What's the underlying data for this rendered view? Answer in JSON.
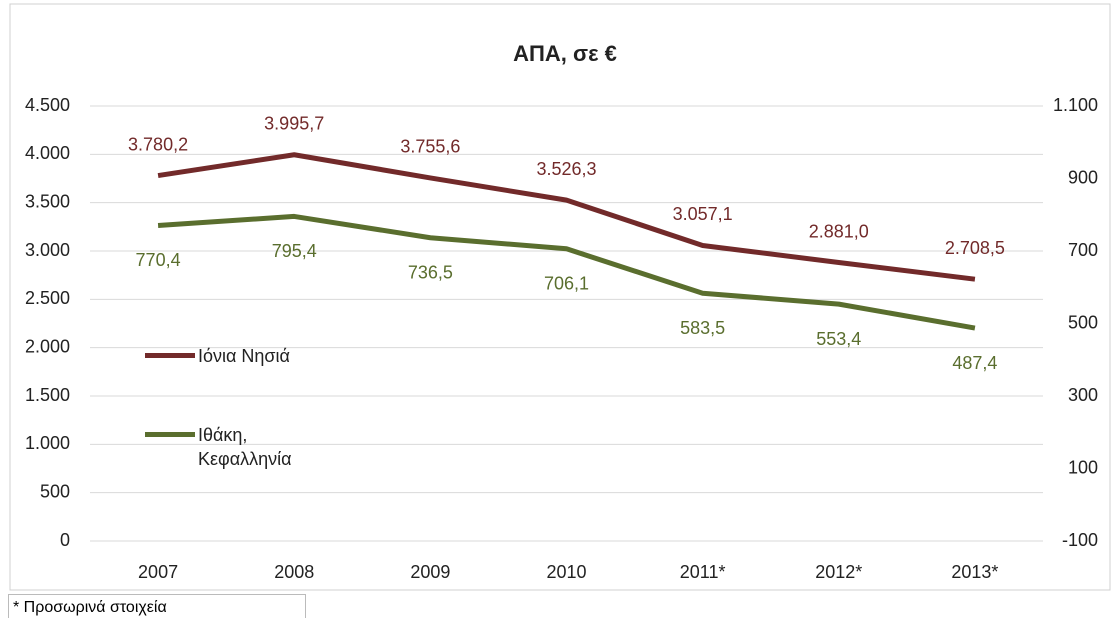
{
  "chart_data": {
    "type": "line",
    "title": "ΑΠΑ, σε €",
    "categories": [
      "2007",
      "2008",
      "2009",
      "2010",
      "2011*",
      "2012*",
      "2013*"
    ],
    "series": [
      {
        "name": "Ιόνια Νησιά",
        "color": "#722a2a",
        "axis": "y",
        "values": [
          3780.2,
          3995.7,
          3755.6,
          3526.3,
          3057.1,
          2881.0,
          2708.5
        ],
        "value_labels": [
          "3.780,2",
          "3.995,7",
          "3.755,6",
          "3.526,3",
          "3.057,1",
          "2.881,0",
          "2.708,5"
        ]
      },
      {
        "name": "Ιθάκη, Κεφαλληνία",
        "color": "#5a6e2e",
        "axis": "y2",
        "values": [
          770.4,
          795.4,
          736.5,
          706.1,
          583.5,
          553.4,
          487.4
        ],
        "value_labels": [
          "770,4",
          "795,4",
          "736,5",
          "706,1",
          "583,5",
          "553,4",
          "487,4"
        ]
      }
    ],
    "ylim": [
      0,
      4500
    ],
    "yticks": [
      0,
      500,
      {
        "value": 1000,
        "label": "1.000"
      },
      {
        "value": 1500,
        "label": "1.500"
      },
      {
        "value": 2000,
        "label": "2.000"
      },
      {
        "value": 2500,
        "label": "2.500"
      },
      {
        "value": 3000,
        "label": "3.000"
      },
      {
        "value": 3500,
        "label": "3.500"
      },
      {
        "value": 4000,
        "label": "4.000"
      },
      {
        "value": 4500,
        "label": "4.500"
      }
    ],
    "y2lim": [
      -100,
      1100
    ],
    "y2ticks": [
      -100,
      100,
      300,
      500,
      700,
      900,
      {
        "value": 1100,
        "label": "1.100"
      }
    ],
    "grid": true,
    "legend": "left"
  },
  "footnote": "* Προσωρινά στοιχεία"
}
